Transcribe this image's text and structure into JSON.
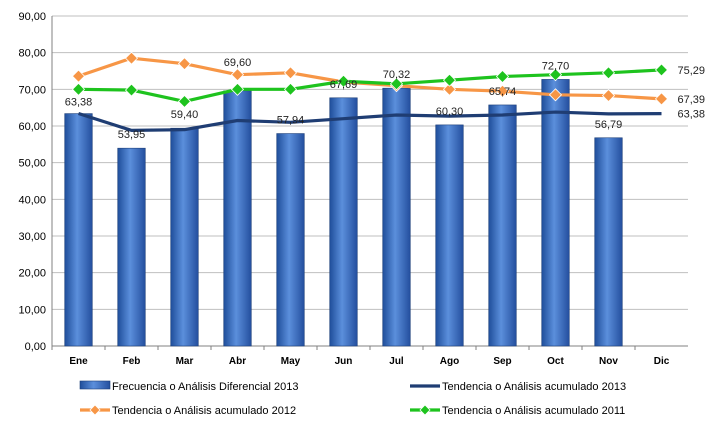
{
  "chart_data": {
    "type": "bar",
    "categories": [
      "Ene",
      "Feb",
      "Mar",
      "Abr",
      "May",
      "Jun",
      "Jul",
      "Ago",
      "Sep",
      "Oct",
      "Nov",
      "Dic"
    ],
    "ylim": [
      0,
      90
    ],
    "yticks": [
      0,
      10,
      20,
      30,
      40,
      50,
      60,
      70,
      80,
      90
    ],
    "ytick_labels": [
      "0,00",
      "10,00",
      "20,00",
      "30,00",
      "40,00",
      "50,00",
      "60,00",
      "70,00",
      "80,00",
      "90,00"
    ],
    "grid": true,
    "legend_position": "bottom",
    "series": [
      {
        "name": "Frecuencia o Análisis Diferencial 2013",
        "type": "bar",
        "color": "#3a6fc4",
        "values": [
          63.38,
          53.95,
          59.4,
          69.6,
          57.94,
          67.69,
          70.32,
          60.3,
          65.74,
          72.7,
          56.79,
          null
        ],
        "labels": [
          "63,38",
          "53,95",
          "59,40",
          "69,60",
          "57,94",
          "67,69",
          "70,32",
          "60,30",
          "65,74",
          "72,70",
          "56,79",
          ""
        ]
      },
      {
        "name": "Tendencia o Análisis acumulado 2013",
        "type": "line",
        "color": "#1f3d73",
        "marker": "none",
        "values": [
          63.4,
          58.8,
          59.0,
          61.5,
          61.0,
          62.0,
          63.0,
          62.7,
          63.0,
          63.8,
          63.3,
          63.38
        ],
        "end_label": "63,38"
      },
      {
        "name": "Tendencia o Análisis acumulado 2012",
        "type": "line",
        "color": "#f79646",
        "marker": "diamond",
        "values": [
          73.6,
          78.5,
          77.0,
          74.0,
          74.5,
          72.0,
          71.0,
          70.0,
          69.5,
          68.5,
          68.3,
          67.39
        ],
        "end_label": "67,39"
      },
      {
        "name": "Tendencia o Análisis acumulado 2011",
        "type": "line",
        "color": "#1ec31e",
        "marker": "diamond",
        "values": [
          70.0,
          69.8,
          66.7,
          70.0,
          70.0,
          72.2,
          71.5,
          72.5,
          73.5,
          74.0,
          74.5,
          75.29
        ],
        "end_label": "75,29"
      }
    ]
  }
}
